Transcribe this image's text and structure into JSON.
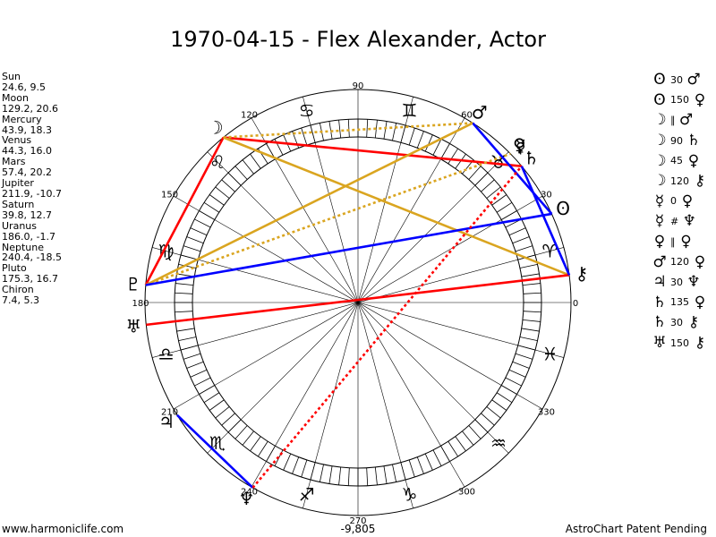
{
  "title": "1970-04-15 - Flex Alexander, Actor",
  "footer": {
    "left": "www.harmoniclife.com",
    "right": "AstroChart Patent Pending",
    "center": "-9,805"
  },
  "planets": [
    {
      "name": "Sun",
      "values": "24.6, 9.5",
      "lon": 24.6,
      "glyph": "ʘ",
      "color": "#0000ff"
    },
    {
      "name": "Moon",
      "values": "129.2, 20.6",
      "lon": 129.2,
      "glyph": "☽",
      "color": "#ff0000"
    },
    {
      "name": "Mercury",
      "values": "43.9, 18.3",
      "lon": 43.9,
      "glyph": "☿",
      "color": "#ff0000"
    },
    {
      "name": "Venus",
      "values": "44.3, 16.0",
      "lon": 44.3,
      "glyph": "♀",
      "color": "#ff0000"
    },
    {
      "name": "Mars",
      "values": "57.4, 20.2",
      "lon": 57.4,
      "glyph": "♂",
      "color": "#ff0000"
    },
    {
      "name": "Jupiter",
      "values": "211.9, -10.7",
      "lon": 211.9,
      "glyph": "♃",
      "color": "#0000ff"
    },
    {
      "name": "Saturn",
      "values": "39.8, 12.7",
      "lon": 39.8,
      "glyph": "♄",
      "color": "#ff0000"
    },
    {
      "name": "Uranus",
      "values": "186.0, -1.7",
      "lon": 186.0,
      "glyph": "♅",
      "color": "#ff0000"
    },
    {
      "name": "Neptune",
      "values": "240.4, -18.5",
      "lon": 240.4,
      "glyph": "♆",
      "color": "#0000ff"
    },
    {
      "name": "Pluto",
      "values": "175.3, 16.7",
      "lon": 175.3,
      "glyph": "♇",
      "color": "#ff0000"
    },
    {
      "name": "Chiron",
      "values": "7.4, 5.3",
      "lon": 7.4,
      "glyph": "⚷",
      "color": "#ff0000"
    }
  ],
  "aspects": [
    {
      "p1": "ʘ",
      "num": "30",
      "p2": "♂"
    },
    {
      "p1": "ʘ",
      "num": "150",
      "p2": "♀"
    },
    {
      "p1": "☽",
      "num": "∥",
      "p2": "♂"
    },
    {
      "p1": "☽",
      "num": "90",
      "p2": "♄"
    },
    {
      "p1": "☽",
      "num": "45",
      "p2": "♀"
    },
    {
      "p1": "☽",
      "num": "120",
      "p2": "⚷"
    },
    {
      "p1": "☿",
      "num": "0",
      "p2": "♀"
    },
    {
      "p1": "☿",
      "num": "#",
      "p2": "♆"
    },
    {
      "p1": "♀",
      "num": "∥",
      "p2": "♀"
    },
    {
      "p1": "♂",
      "num": "120",
      "p2": "♀"
    },
    {
      "p1": "♃",
      "num": "30",
      "p2": "♆"
    },
    {
      "p1": "♄",
      "num": "135",
      "p2": "♀"
    },
    {
      "p1": "♄",
      "num": "30",
      "p2": "⚷"
    },
    {
      "p1": "♅",
      "num": "150",
      "p2": "⚷"
    }
  ],
  "degree_labels": [
    "0",
    "30",
    "60",
    "90",
    "120",
    "150",
    "180",
    "210",
    "240",
    "270",
    "300",
    "330"
  ],
  "zodiac": [
    {
      "glyph": "♈",
      "lon": 15
    },
    {
      "glyph": "♉",
      "lon": 45
    },
    {
      "glyph": "♊",
      "lon": 75
    },
    {
      "glyph": "♋",
      "lon": 105
    },
    {
      "glyph": "♌",
      "lon": 135
    },
    {
      "glyph": "♍",
      "lon": 165
    },
    {
      "glyph": "♎",
      "lon": 195
    },
    {
      "glyph": "♏",
      "lon": 225
    },
    {
      "glyph": "♐",
      "lon": 255
    },
    {
      "glyph": "♑",
      "lon": 285
    },
    {
      "glyph": "♒",
      "lon": 315
    },
    {
      "glyph": "♓",
      "lon": 345
    }
  ],
  "aspect_lines": [
    {
      "from": 129.2,
      "to": 175.3,
      "color": "#ff0000",
      "dashed": false
    },
    {
      "from": 129.2,
      "to": 39.8,
      "color": "#ff0000",
      "dashed": false
    },
    {
      "from": 129.2,
      "to": 7.4,
      "color": "#daa520",
      "dashed": false
    },
    {
      "from": 175.3,
      "to": 57.4,
      "color": "#daa520",
      "dashed": false
    },
    {
      "from": 175.3,
      "to": 44.3,
      "color": "#daa520",
      "dashed": true
    },
    {
      "from": 175.3,
      "to": 24.6,
      "color": "#0000ff",
      "dashed": false
    },
    {
      "from": 186.0,
      "to": 7.4,
      "color": "#ff0000",
      "dashed": false
    },
    {
      "from": 57.4,
      "to": 24.6,
      "color": "#0000ff",
      "dashed": false
    },
    {
      "from": 39.8,
      "to": 7.4,
      "color": "#0000ff",
      "dashed": false
    },
    {
      "from": 129.2,
      "to": 57.4,
      "color": "#daa520",
      "dashed": true
    },
    {
      "from": 240.4,
      "to": 211.9,
      "color": "#0000ff",
      "dashed": false
    },
    {
      "from": 240.4,
      "to": 39.8,
      "color": "#ff0000",
      "dashed": true
    }
  ]
}
